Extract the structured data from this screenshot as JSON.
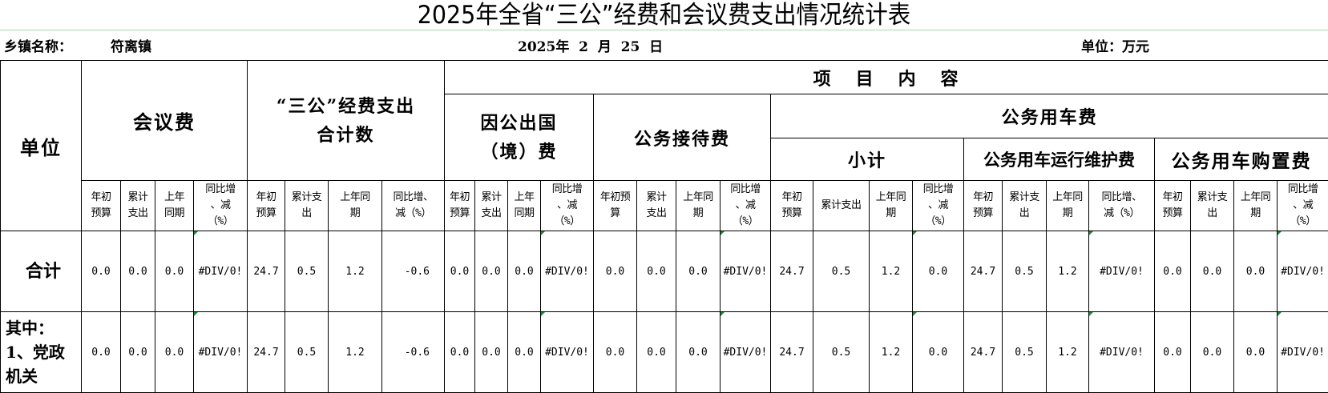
{
  "title": "2025年全省“三公”经费和会议费支出情况统计表",
  "info": {
    "town_label": "乡镇名称：",
    "town_value": "符离镇",
    "date": "2025年  2  月  25  日",
    "unit": "单位：万元"
  },
  "header": {
    "unit_col": "单位",
    "project_content": "项   目   内   容",
    "groups": {
      "meeting": "会议费",
      "sangong_total": "“三公”经费支出\n合计数",
      "abroad": "因公出国\n（境）费",
      "reception": "公务接待费",
      "vehicle": "公务用车费",
      "vehicle_subtotal": "小计",
      "vehicle_maintenance": "公务用车运行维护费",
      "vehicle_purchase": "公务用车购置费"
    },
    "subcolumns": [
      [
        "年初\n预算",
        "累计\n支出",
        "上年\n同期",
        "同比增\n、减\n（%）"
      ],
      [
        "年初\n预算",
        "累计支\n出",
        "上年同\n期",
        "同比增、\n减（%）"
      ],
      [
        "年初\n预算",
        "累计\n支出",
        "上年\n同期",
        "同比增\n、减\n（%）"
      ],
      [
        "年初预\n算",
        "累计\n支出",
        "上年同\n期",
        "同比增\n、减\n（%）"
      ],
      [
        "年初\n预算",
        "累计支出",
        "上年同\n期",
        "同比增\n、减\n（%）"
      ],
      [
        "年初\n预算",
        "累计支\n出",
        "上年同\n期",
        "同比增、\n减（%）"
      ],
      [
        "年初\n预算",
        "累计支\n出",
        "上年同\n期",
        "同比增\n、减\n（%）"
      ]
    ]
  },
  "rows": [
    {
      "label": "合计",
      "values": [
        "0.0",
        "0.0",
        "0.0",
        "#DIV/0!",
        "24.7",
        "0.5",
        "1.2",
        "-0.6",
        "0.0",
        "0.0",
        "0.0",
        "#DIV/0!",
        "0.0",
        "0.0",
        "0.0",
        "#DIV/0!",
        "24.7",
        "0.5",
        "1.2",
        "0.0",
        "24.7",
        "0.5",
        "1.2",
        "#DIV/0!",
        "0.0",
        "0.0",
        "0.0",
        "#DIV/0!"
      ]
    },
    {
      "label": "其中：\n1、党政\n机关",
      "values": [
        "0.0",
        "0.0",
        "0.0",
        "#DIV/0!",
        "24.7",
        "0.5",
        "1.2",
        "-0.6",
        "0.0",
        "0.0",
        "0.0",
        "#DIV/0!",
        "0.0",
        "0.0",
        "0.0",
        "#DIV/0!",
        "24.7",
        "0.5",
        "1.2",
        "0.0",
        "24.7",
        "0.5",
        "1.2",
        "#DIV/0!",
        "0.0",
        "0.0",
        "0.0",
        "#DIV/0!"
      ]
    }
  ],
  "colors": {
    "error_indicator": "#1a8a3a",
    "title_rule": "#a9d7b4"
  }
}
